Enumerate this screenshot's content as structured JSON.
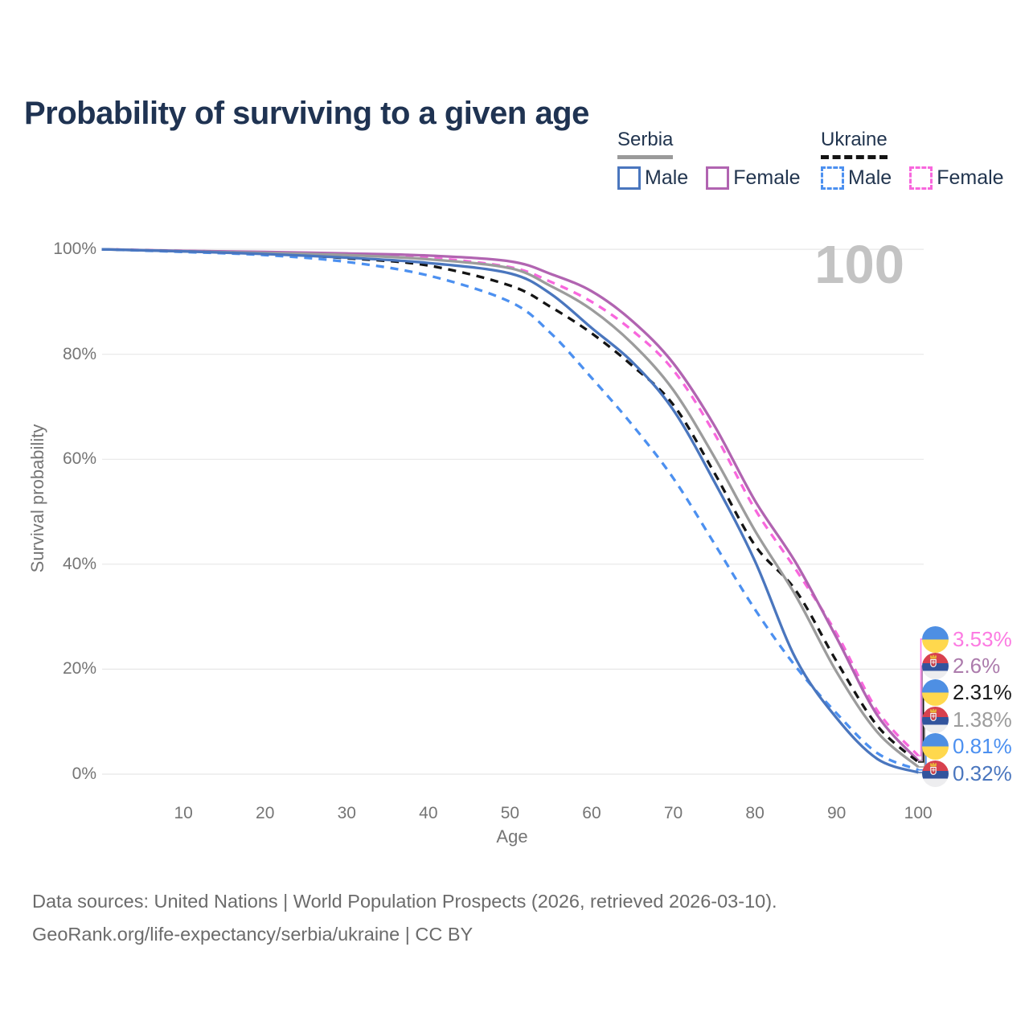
{
  "title": "Probability of surviving to a given age",
  "legend": {
    "groups": [
      {
        "country": "Serbia",
        "line_style": "solid",
        "line_color": "#9A9A9A",
        "items": [
          {
            "label": "Male",
            "color": "#4A76BE"
          },
          {
            "label": "Female",
            "color": "#B164B1"
          }
        ]
      },
      {
        "country": "Ukraine",
        "line_style": "dashed",
        "line_color": "#141414",
        "items": [
          {
            "label": "Male",
            "color": "#4C90F0"
          },
          {
            "label": "Female",
            "color": "#F867DD"
          }
        ]
      }
    ]
  },
  "chart_data": {
    "type": "line",
    "title": "Probability of surviving to a given age",
    "xlabel": "Age",
    "ylabel": "Survival probability",
    "xlim": [
      0,
      100
    ],
    "ylim": [
      0,
      100
    ],
    "grid": "horizontal",
    "legend_position": "top-right",
    "hover_value": "100",
    "x_ticks": [
      10,
      20,
      30,
      40,
      50,
      60,
      70,
      80,
      90,
      100
    ],
    "y_ticks": [
      {
        "value": 100,
        "label": "100%"
      },
      {
        "value": 80,
        "label": "80%"
      },
      {
        "value": 60,
        "label": "60%"
      },
      {
        "value": 40,
        "label": "40%"
      },
      {
        "value": 20,
        "label": "20%"
      },
      {
        "value": 0,
        "label": "0%"
      }
    ],
    "x": [
      0,
      10,
      20,
      30,
      40,
      50,
      55,
      60,
      65,
      70,
      75,
      80,
      85,
      90,
      95,
      100
    ],
    "series": [
      {
        "name": "Ukraine Female",
        "country": "Ukraine",
        "sex": "Female",
        "color": "#F867DD",
        "label_color": "#FC7BE2",
        "dashed": true,
        "flag": "ukraine",
        "end_label": "3.53%",
        "values": [
          100,
          99.7,
          99.4,
          99.0,
          98.4,
          96.6,
          93.8,
          90.0,
          84.5,
          77.0,
          65.0,
          50.5,
          39.0,
          26.8,
          12.1,
          3.53
        ]
      },
      {
        "name": "Serbia Female",
        "country": "Serbia",
        "sex": "Female",
        "color": "#B164B1",
        "label_color": "#AC7BAC",
        "dashed": false,
        "flag": "serbia",
        "end_label": "2.6%",
        "values": [
          100,
          99.7,
          99.5,
          99.2,
          98.8,
          97.7,
          95.3,
          92.0,
          86.3,
          78.3,
          66.5,
          52.1,
          40.3,
          26.0,
          11.2,
          2.6
        ]
      },
      {
        "name": "Ukraine Both sexes",
        "country": "Ukraine",
        "sex": "Both",
        "color": "#141414",
        "label_color": "#1A1A1A",
        "dashed": true,
        "flag": "ukraine",
        "end_label": "2.31%",
        "values": [
          100,
          99.6,
          99.2,
          98.3,
          96.9,
          93.1,
          89.0,
          84.0,
          77.8,
          70.4,
          57.5,
          43.6,
          35.0,
          21.5,
          9.2,
          2.31
        ]
      },
      {
        "name": "Serbia Both sexes",
        "country": "Serbia",
        "sex": "Both",
        "color": "#9C9C9C",
        "label_color": "#9C9C9C",
        "dashed": false,
        "flag": "serbia",
        "end_label": "1.38%",
        "values": [
          100,
          99.6,
          99.3,
          98.9,
          98.1,
          96.4,
          93.0,
          88.5,
          82.0,
          73.2,
          60.5,
          46.4,
          34.0,
          19.5,
          8.0,
          1.38
        ]
      },
      {
        "name": "Ukraine Male",
        "country": "Ukraine",
        "sex": "Male",
        "color": "#4C90F0",
        "label_color": "#4C90F0",
        "dashed": true,
        "flag": "ukraine",
        "end_label": "0.81%",
        "values": [
          100,
          99.5,
          98.9,
          97.6,
          95.0,
          90.0,
          84.0,
          75.5,
          66.5,
          56.4,
          44.0,
          31.4,
          20.5,
          11.6,
          4.0,
          0.81
        ]
      },
      {
        "name": "Serbia Male",
        "country": "Serbia",
        "sex": "Male",
        "color": "#4A76BE",
        "label_color": "#4A76BE",
        "dashed": false,
        "flag": "serbia",
        "end_label": "0.32%",
        "values": [
          100,
          99.6,
          99.1,
          98.4,
          97.4,
          95.4,
          91.5,
          85.0,
          78.5,
          69.4,
          55.8,
          40.6,
          22.0,
          10.7,
          2.9,
          0.32
        ]
      }
    ]
  },
  "footer": {
    "line1": "Data sources: United Nations | World Population Prospects (2026, retrieved 2026-03-10).",
    "line2": "GeoRank.org/life-expectancy/serbia/ukraine | CC BY"
  }
}
